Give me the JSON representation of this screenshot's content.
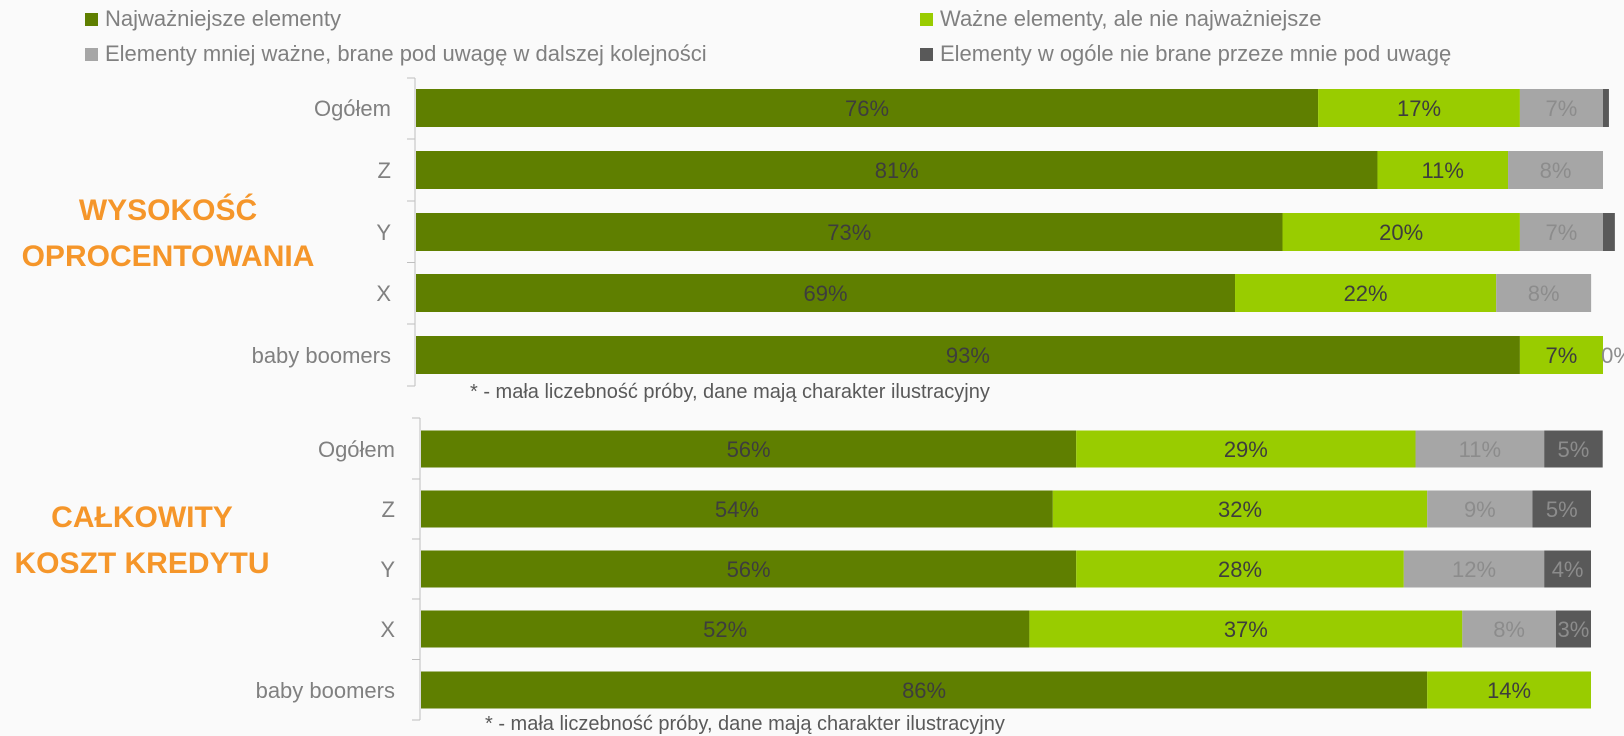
{
  "legend": [
    {
      "label": "Najważniejsze elementy",
      "color": "#5f7f00"
    },
    {
      "label": "Ważne elementy, ale nie najważniejsze",
      "color": "#99cc00"
    },
    {
      "label": "Elementy mniej ważne, brane pod uwagę w dalszej kolejności",
      "color": "#a6a6a6"
    },
    {
      "label": "Elementy w ogóle nie brane przeze mnie pod uwagę",
      "color": "#595959"
    }
  ],
  "chart_data": [
    {
      "type": "bar",
      "orientation": "horizontal",
      "stacked": true,
      "title": "WYSOKOŚĆ OPROCENTOWANIA",
      "categories": [
        "Ogółem",
        "Z",
        "Y",
        "X",
        "baby boomers"
      ],
      "series": [
        {
          "name": "Najważniejsze elementy",
          "values": [
            76,
            81,
            73,
            69,
            93
          ],
          "labels": [
            "76%",
            "81%",
            "73%",
            "69%",
            "93%"
          ]
        },
        {
          "name": "Ważne elementy, ale nie najważniejsze",
          "values": [
            17,
            11,
            20,
            22,
            7
          ],
          "labels": [
            "17%",
            "11%",
            "20%",
            "22%",
            "7%"
          ]
        },
        {
          "name": "Elementy mniej ważne, brane pod uwagę w dalszej kolejności",
          "values": [
            7,
            8,
            7,
            8,
            0
          ],
          "labels": [
            "7%",
            "8%",
            "7%",
            "8%",
            "0%"
          ]
        },
        {
          "name": "Elementy w ogóle nie brane przeze mnie pod uwagę",
          "values": [
            0.5,
            0,
            1,
            0,
            0
          ],
          "labels": [
            "",
            "",
            "",
            "",
            ""
          ]
        }
      ],
      "xlim": [
        0,
        100
      ],
      "note": "* - mała liczebność próby, dane mają charakter ilustracyjny"
    },
    {
      "type": "bar",
      "orientation": "horizontal",
      "stacked": true,
      "title": "CAŁKOWITY KOSZT KREDYTU",
      "categories": [
        "Ogółem",
        "Z",
        "Y",
        "X",
        "baby boomers"
      ],
      "series": [
        {
          "name": "Najważniejsze elementy",
          "values": [
            56,
            54,
            56,
            52,
            86
          ],
          "labels": [
            "56%",
            "54%",
            "56%",
            "52%",
            "86%"
          ]
        },
        {
          "name": "Ważne elementy, ale nie najważniejsze",
          "values": [
            29,
            32,
            28,
            37,
            14
          ],
          "labels": [
            "29%",
            "32%",
            "28%",
            "37%",
            "14%"
          ]
        },
        {
          "name": "Elementy mniej ważne, brane pod uwagę w dalszej kolejności",
          "values": [
            11,
            9,
            12,
            8,
            0
          ],
          "labels": [
            "11%",
            "9%",
            "12%",
            "8%",
            ""
          ]
        },
        {
          "name": "Elementy w ogóle nie brane przeze mnie pod uwagę",
          "values": [
            5,
            5,
            4,
            3,
            0
          ],
          "labels": [
            "5%",
            "5%",
            "4%",
            "3%",
            ""
          ]
        }
      ],
      "xlim": [
        0,
        100
      ],
      "note": "* - mała liczebność próby, dane mają charakter ilustracyjny"
    }
  ]
}
